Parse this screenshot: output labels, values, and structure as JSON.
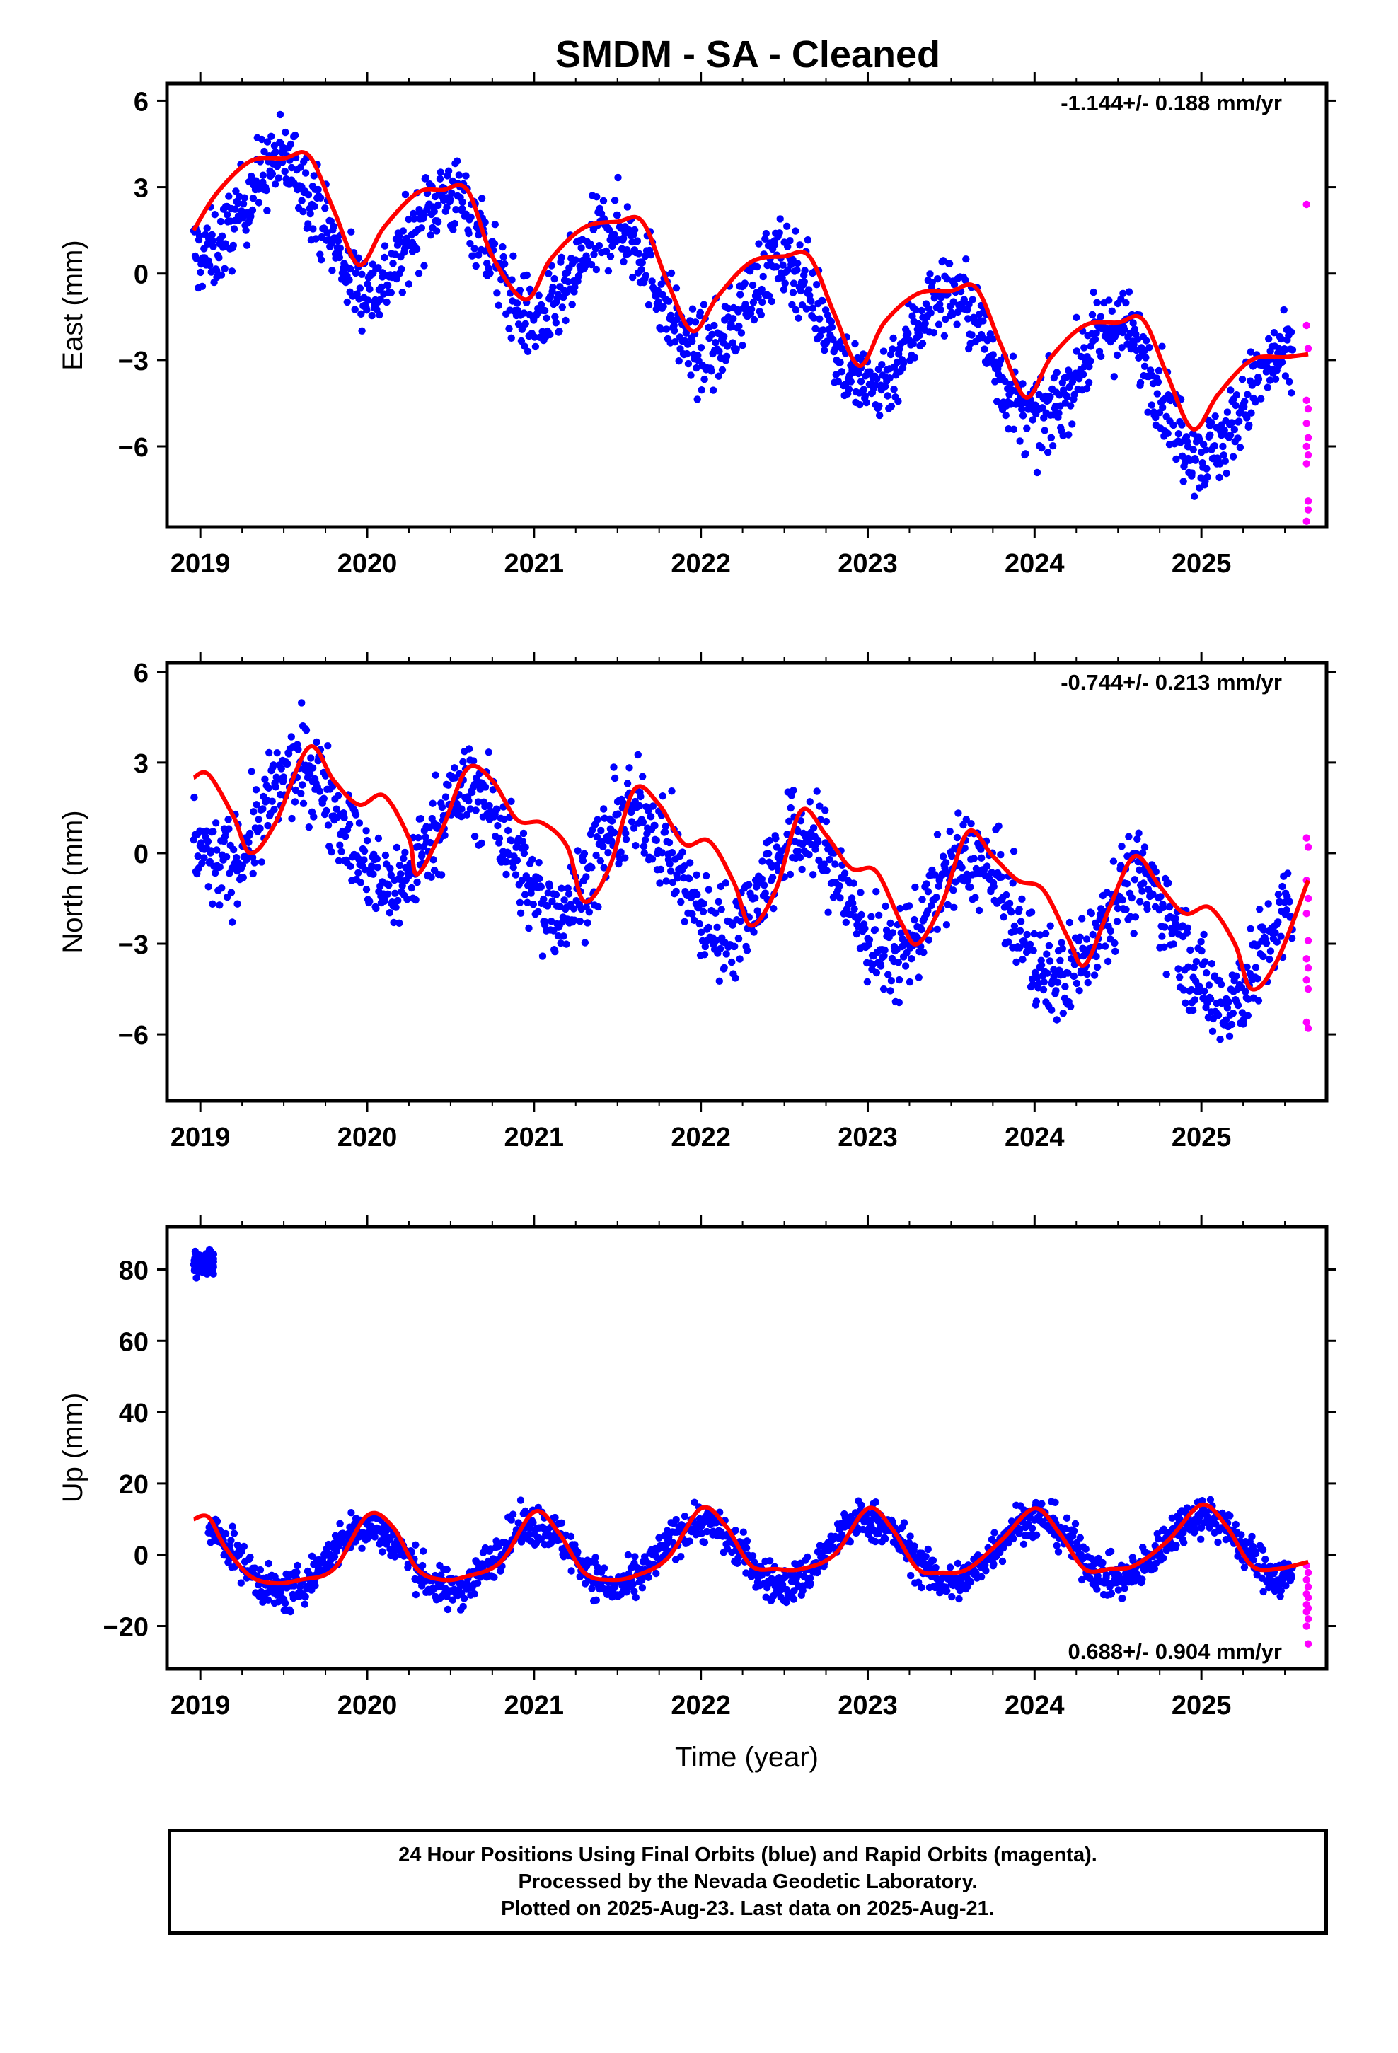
{
  "chart_data": [
    {
      "type": "scatter",
      "title": "SMDM  - SA - Cleaned",
      "ylabel": "East (mm)",
      "xlabel": "",
      "rate_label": "-1.144+/- 0.188 mm/yr",
      "xlim": [
        2018.8,
        2025.75
      ],
      "ylim": [
        -8.8,
        6.6
      ],
      "yticks": [
        6,
        3,
        0,
        -3,
        -6
      ],
      "ytick_labels": [
        "6",
        "3",
        "0",
        "−3",
        "−6"
      ],
      "xticks": [
        2019,
        2020,
        2021,
        2022,
        2023,
        2024,
        2025
      ],
      "xtick_labels": [
        "2019",
        "2020",
        "2021",
        "2022",
        "2023",
        "2024",
        "2025"
      ],
      "series": [
        {
          "name": "Final Orbits",
          "color": "#0000ff",
          "kind": "points",
          "trend": {
            "start": [
              2018.96,
              2.6
            ],
            "rate": -1.144,
            "amp": 1.9,
            "phase_peak": 2019.5,
            "noise": 1.0
          },
          "x_range": [
            2018.96,
            2025.55
          ]
        },
        {
          "name": "Rapid Orbits",
          "color": "#ff00ff",
          "kind": "points",
          "x": [
            2025.63,
            2025.63,
            2025.64,
            2025.63,
            2025.64,
            2025.63,
            2025.64,
            2025.63,
            2025.64,
            2025.63,
            2025.64,
            2025.64,
            2025.63
          ],
          "y": [
            2.4,
            -1.8,
            -2.6,
            -4.4,
            -4.7,
            -5.2,
            -5.7,
            -6.0,
            -6.3,
            -6.6,
            -7.9,
            -8.2,
            -8.6
          ]
        },
        {
          "name": "Model",
          "color": "#ff0000",
          "kind": "line",
          "x": [
            2018.96,
            2019.1,
            2019.3,
            2019.5,
            2019.65,
            2019.8,
            2019.95,
            2020.1,
            2020.3,
            2020.45,
            2020.6,
            2020.75,
            2020.95,
            2021.1,
            2021.3,
            2021.5,
            2021.65,
            2021.8,
            2021.95,
            2022.1,
            2022.3,
            2022.5,
            2022.65,
            2022.8,
            2022.95,
            2023.1,
            2023.3,
            2023.5,
            2023.65,
            2023.8,
            2023.95,
            2024.1,
            2024.3,
            2024.5,
            2024.65,
            2024.8,
            2024.95,
            2025.1,
            2025.3,
            2025.5,
            2025.64
          ],
          "y": [
            1.5,
            2.8,
            3.9,
            4.0,
            4.1,
            2.2,
            0.3,
            1.6,
            2.8,
            2.9,
            2.9,
            0.6,
            -0.9,
            0.5,
            1.6,
            1.8,
            1.8,
            -0.3,
            -2.0,
            -0.8,
            0.4,
            0.6,
            0.6,
            -1.4,
            -3.2,
            -1.7,
            -0.7,
            -0.6,
            -0.5,
            -2.5,
            -4.3,
            -2.9,
            -1.8,
            -1.7,
            -1.6,
            -3.6,
            -5.4,
            -4.2,
            -3.0,
            -2.9,
            -2.8
          ]
        }
      ]
    },
    {
      "type": "scatter",
      "ylabel": "North (mm)",
      "xlabel": "",
      "rate_label": "-0.744+/- 0.213 mm/yr",
      "xlim": [
        2018.8,
        2025.75
      ],
      "ylim": [
        -8.2,
        6.3
      ],
      "yticks": [
        6,
        3,
        0,
        -3,
        -6
      ],
      "ytick_labels": [
        "6",
        "3",
        "0",
        "−3",
        "−6"
      ],
      "xticks": [
        2019,
        2020,
        2021,
        2022,
        2023,
        2024,
        2025
      ],
      "xtick_labels": [
        "2019",
        "2020",
        "2021",
        "2022",
        "2023",
        "2024",
        "2025"
      ],
      "series": [
        {
          "name": "Final Orbits",
          "color": "#0000ff",
          "kind": "points",
          "trend": {
            "start": [
              2018.96,
              1.5
            ],
            "rate": -0.744,
            "amp": 1.8,
            "phase_peak": 2019.62,
            "noise": 1.1
          },
          "x_range": [
            2018.96,
            2025.55
          ]
        },
        {
          "name": "Rapid Orbits",
          "color": "#ff00ff",
          "kind": "points",
          "x": [
            2025.63,
            2025.64,
            2025.63,
            2025.64,
            2025.63,
            2025.64,
            2025.63,
            2025.64,
            2025.63,
            2025.64,
            2025.63,
            2025.64
          ],
          "y": [
            0.5,
            0.2,
            -0.9,
            -1.5,
            -2.0,
            -2.9,
            -3.5,
            -3.8,
            -4.2,
            -4.5,
            -5.6,
            -5.8
          ]
        },
        {
          "name": "Model",
          "color": "#ff0000",
          "kind": "line",
          "x": [
            2018.96,
            2019.05,
            2019.2,
            2019.3,
            2019.45,
            2019.65,
            2019.8,
            2019.95,
            2020.1,
            2020.25,
            2020.3,
            2020.45,
            2020.6,
            2020.75,
            2020.9,
            2021.05,
            2021.2,
            2021.3,
            2021.45,
            2021.6,
            2021.75,
            2021.9,
            2022.05,
            2022.2,
            2022.3,
            2022.45,
            2022.6,
            2022.75,
            2022.9,
            2023.05,
            2023.2,
            2023.3,
            2023.45,
            2023.6,
            2023.75,
            2023.9,
            2024.05,
            2024.2,
            2024.3,
            2024.45,
            2024.6,
            2024.75,
            2024.9,
            2025.05,
            2025.2,
            2025.3,
            2025.45,
            2025.64
          ],
          "y": [
            2.5,
            2.6,
            1.2,
            0.0,
            1.0,
            3.5,
            2.4,
            1.6,
            1.9,
            0.5,
            -0.7,
            0.8,
            2.8,
            2.4,
            1.1,
            1.0,
            0.2,
            -1.6,
            -0.5,
            2.1,
            1.6,
            0.3,
            0.4,
            -1.0,
            -2.4,
            -1.2,
            1.4,
            0.6,
            -0.5,
            -0.6,
            -2.3,
            -3.0,
            -1.6,
            0.7,
            -0.1,
            -0.9,
            -1.2,
            -2.8,
            -3.7,
            -1.8,
            -0.1,
            -1.1,
            -2.0,
            -1.8,
            -3.0,
            -4.5,
            -3.6,
            -0.9
          ]
        }
      ]
    },
    {
      "type": "scatter",
      "ylabel": "Up (mm)",
      "xlabel": "Time (year)",
      "rate_label": "0.688+/- 0.904 mm/yr",
      "xlim": [
        2018.8,
        2025.75
      ],
      "ylim": [
        -32,
        92
      ],
      "yticks": [
        80,
        60,
        40,
        20,
        0,
        -20
      ],
      "ytick_labels": [
        "80",
        "60",
        "40",
        "20",
        "0",
        "−20"
      ],
      "xticks": [
        2019,
        2020,
        2021,
        2022,
        2023,
        2024,
        2025
      ],
      "xtick_labels": [
        "2019",
        "2020",
        "2021",
        "2022",
        "2023",
        "2024",
        "2025"
      ],
      "series": [
        {
          "name": "Final Orbits",
          "color": "#0000ff",
          "kind": "points",
          "trend": {
            "start": [
              2019.05,
              -2.0
            ],
            "rate": 0.688,
            "amp": 9.0,
            "phase_peak": 2020.0,
            "noise": 4.0
          },
          "x_range": [
            2019.05,
            2025.55
          ],
          "cluster": {
            "x_range": [
              2018.96,
              2019.08
            ],
            "y_center": 82,
            "y_spread": 4
          }
        },
        {
          "name": "Rapid Orbits",
          "color": "#ff00ff",
          "kind": "points",
          "x": [
            2025.63,
            2025.64,
            2025.63,
            2025.64,
            2025.63,
            2025.64,
            2025.63,
            2025.64,
            2025.63,
            2025.64,
            2025.63,
            2025.64
          ],
          "y": [
            -3,
            -5,
            -7,
            -9,
            -11,
            -12,
            -14,
            -15,
            -16,
            -18,
            -20,
            -25
          ]
        },
        {
          "name": "Model",
          "color": "#ff0000",
          "kind": "line",
          "x": [
            2018.96,
            2019.05,
            2019.15,
            2019.3,
            2019.45,
            2019.6,
            2019.8,
            2020.0,
            2020.15,
            2020.3,
            2020.45,
            2020.6,
            2020.8,
            2021.0,
            2021.15,
            2021.3,
            2021.45,
            2021.6,
            2021.8,
            2022.0,
            2022.15,
            2022.3,
            2022.45,
            2022.6,
            2022.8,
            2023.0,
            2023.15,
            2023.3,
            2023.45,
            2023.6,
            2023.8,
            2024.0,
            2024.15,
            2024.3,
            2024.45,
            2024.6,
            2024.8,
            2025.0,
            2025.15,
            2025.3,
            2025.45,
            2025.64
          ],
          "y": [
            10,
            10.5,
            2,
            -6,
            -8,
            -7,
            -4,
            11,
            8,
            -4,
            -7,
            -6,
            -2,
            12,
            6,
            -5,
            -7,
            -6,
            -1,
            13,
            8,
            -3,
            -4,
            -4,
            0,
            13,
            7,
            -4,
            -5,
            -4,
            4,
            13,
            6,
            -4,
            -4,
            -3,
            4,
            14,
            8,
            -3,
            -4,
            -2
          ]
        }
      ]
    }
  ],
  "footer": {
    "line1": "24 Hour Positions Using Final Orbits (blue) and Rapid Orbits (magenta).",
    "line2": "Processed by the Nevada Geodetic Laboratory.",
    "line3": "Plotted on 2025-Aug-23. Last data on 2025-Aug-21."
  }
}
